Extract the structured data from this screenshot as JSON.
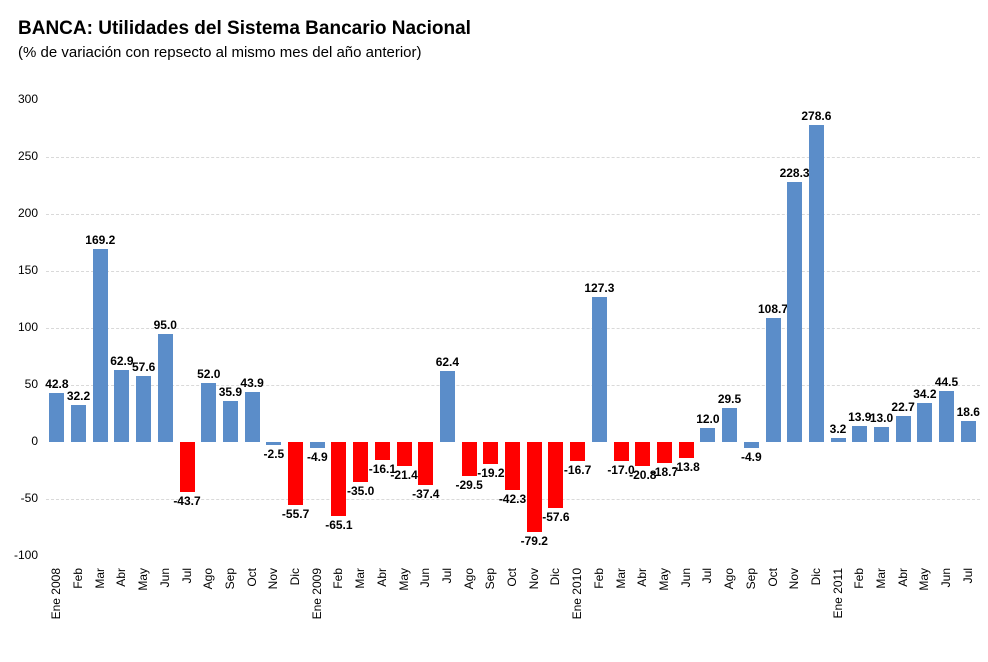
{
  "header": {
    "title_prefix": "BANCA:",
    "title_rest": " Utilidades del Sistema Bancario Nacional",
    "subtitle": "(% de variación con repsecto al mismo mes del año anterior)"
  },
  "chart_data": {
    "type": "bar",
    "title": "BANCA: Utilidades del Sistema Bancario Nacional",
    "subtitle": "(% de variación con repsecto al mismo mes del año anterior)",
    "xlabel": "",
    "ylabel": "",
    "ylim": [
      -100,
      300
    ],
    "yticks": [
      300,
      250,
      200,
      150,
      100,
      50,
      0,
      -50,
      -100
    ],
    "gridlines": [
      250,
      200,
      150,
      100,
      50,
      -50
    ],
    "grid": "horizontal-dashed",
    "legend": null,
    "value_label_format": "one_decimal",
    "categories": [
      "Ene 2008",
      "Feb",
      "Mar",
      "Abr",
      "May",
      "Jun",
      "Jul",
      "Ago",
      "Sep",
      "Oct",
      "Nov",
      "Dic",
      "Ene 2009",
      "Feb",
      "Mar",
      "Abr",
      "May",
      "Jun",
      "Jul",
      "Ago",
      "Sep",
      "Oct",
      "Nov",
      "Dic",
      "Ene 2010",
      "Feb",
      "Mar",
      "Abr",
      "May",
      "Jun",
      "Jul",
      "Ago",
      "Sep",
      "Oct",
      "Nov",
      "Dic",
      "Ene 2011",
      "Feb",
      "Mar",
      "Abr",
      "May",
      "Jun",
      "Jul"
    ],
    "values": [
      42.8,
      32.2,
      169.2,
      62.9,
      57.6,
      95.0,
      -43.7,
      52.0,
      35.9,
      43.9,
      -2.5,
      -55.7,
      -4.9,
      -65.1,
      -35.0,
      -16.1,
      -21.4,
      -37.4,
      62.4,
      -29.5,
      -19.2,
      -42.3,
      -79.2,
      -57.6,
      -16.7,
      127.3,
      -17.0,
      -20.8,
      -18.7,
      -13.8,
      12.0,
      29.5,
      -4.9,
      108.7,
      228.3,
      278.6,
      3.2,
      13.9,
      13.0,
      22.7,
      34.2,
      44.5,
      18.6
    ],
    "bar_colors": [
      "blue",
      "blue",
      "blue",
      "blue",
      "blue",
      "blue",
      "red",
      "blue",
      "blue",
      "blue",
      "blue",
      "red",
      "blue",
      "red",
      "red",
      "red",
      "red",
      "red",
      "blue",
      "red",
      "red",
      "red",
      "red",
      "red",
      "red",
      "blue",
      "red",
      "red",
      "red",
      "red",
      "blue",
      "blue",
      "blue",
      "blue",
      "blue",
      "blue",
      "blue",
      "blue",
      "blue",
      "blue",
      "blue",
      "blue",
      "blue"
    ],
    "colors": {
      "blue": "#5B8DC9",
      "red": "#FF0000",
      "gridline": "#D9D9D9",
      "text": "#000000",
      "background": "#FFFFFF"
    }
  }
}
